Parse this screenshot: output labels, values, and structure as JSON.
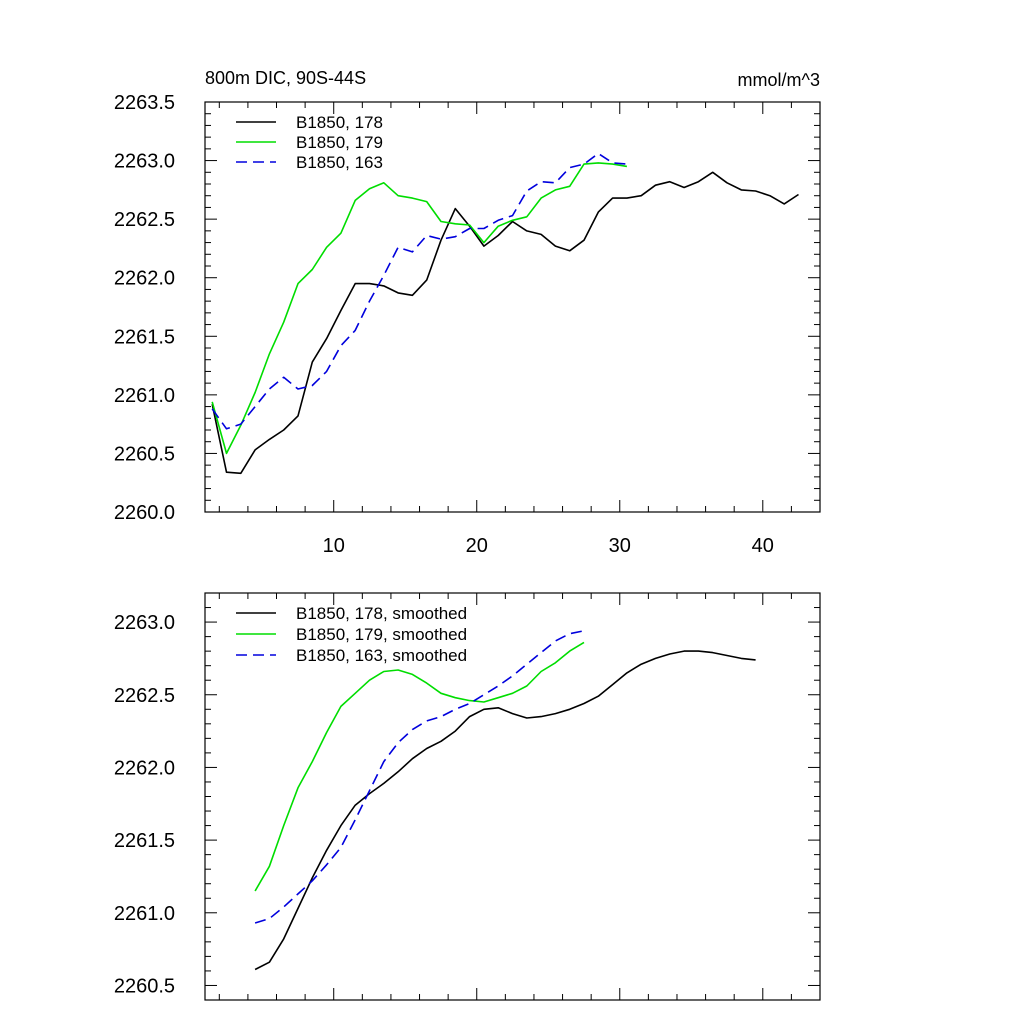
{
  "chart_data": [
    {
      "type": "line",
      "title_left": "800m DIC, 90S-44S",
      "title_right": "mmol/m^3",
      "xlim": [
        1,
        44
      ],
      "ylim": [
        2260.0,
        2263.5
      ],
      "x_ticks": [
        10,
        20,
        30,
        40
      ],
      "x_tick_labels": [
        "10",
        "20",
        "30",
        "40"
      ],
      "y_ticks": [
        2260.0,
        2260.5,
        2261.0,
        2261.5,
        2262.0,
        2262.5,
        2263.0,
        2263.5
      ],
      "y_tick_labels": [
        "2260.0",
        "2260.5",
        "2261.0",
        "2261.5",
        "2262.0",
        "2262.5",
        "2263.0",
        "2263.5"
      ],
      "legend_position": "top-left",
      "series": [
        {
          "name": "B1850, 178",
          "color": "#000000",
          "dash": "solid",
          "x": [
            1.5,
            2.5,
            3.5,
            4.5,
            5.5,
            6.5,
            7.5,
            8.5,
            9.5,
            10.5,
            11.5,
            12.5,
            13.5,
            14.5,
            15.5,
            16.5,
            17.5,
            18.5,
            19.5,
            20.5,
            21.5,
            22.5,
            23.5,
            24.5,
            25.5,
            26.5,
            27.5,
            28.5,
            29.5,
            30.5,
            31.5,
            32.5,
            33.5,
            34.5,
            35.5,
            36.5,
            37.5,
            38.5,
            39.5,
            40.5,
            41.5,
            42.5
          ],
          "y": [
            2260.92,
            2260.34,
            2260.33,
            2260.53,
            2260.62,
            2260.7,
            2260.82,
            2261.28,
            2261.48,
            2261.72,
            2261.95,
            2261.95,
            2261.93,
            2261.87,
            2261.85,
            2261.98,
            2262.32,
            2262.59,
            2262.44,
            2262.27,
            2262.36,
            2262.48,
            2262.4,
            2262.37,
            2262.27,
            2262.23,
            2262.32,
            2262.56,
            2262.68,
            2262.68,
            2262.7,
            2262.79,
            2262.82,
            2262.77,
            2262.82,
            2262.9,
            2262.81,
            2262.75,
            2262.74,
            2262.7,
            2262.63,
            2262.71
          ]
        },
        {
          "name": "B1850, 179",
          "color": "#00dd00",
          "dash": "solid",
          "x": [
            1.5,
            2.5,
            3.5,
            4.5,
            5.5,
            6.5,
            7.5,
            8.5,
            9.5,
            10.5,
            11.5,
            12.5,
            13.5,
            14.5,
            15.5,
            16.5,
            17.5,
            18.5,
            19.5,
            20.5,
            21.5,
            22.5,
            23.5,
            24.5,
            25.5,
            26.5,
            27.5,
            28.5,
            29.5,
            30.5
          ],
          "y": [
            2260.94,
            2260.5,
            2260.74,
            2261.02,
            2261.35,
            2261.62,
            2261.95,
            2262.07,
            2262.26,
            2262.38,
            2262.66,
            2262.76,
            2262.81,
            2262.7,
            2262.68,
            2262.65,
            2262.48,
            2262.46,
            2262.45,
            2262.3,
            2262.44,
            2262.49,
            2262.52,
            2262.68,
            2262.75,
            2262.78,
            2262.97,
            2262.98,
            2262.97,
            2262.95
          ]
        },
        {
          "name": "B1850, 163",
          "color": "#0000dd",
          "dash": "dashed",
          "x": [
            1.5,
            2.5,
            3.5,
            4.5,
            5.5,
            6.5,
            7.5,
            8.5,
            9.5,
            10.5,
            11.5,
            12.5,
            13.5,
            14.5,
            15.5,
            16.5,
            17.5,
            18.5,
            19.5,
            20.5,
            21.5,
            22.5,
            23.5,
            24.5,
            25.5,
            26.5,
            27.5,
            28.5,
            29.5,
            30.5
          ],
          "y": [
            2260.88,
            2260.71,
            2260.75,
            2260.9,
            2261.05,
            2261.15,
            2261.05,
            2261.08,
            2261.2,
            2261.42,
            2261.55,
            2261.8,
            2262.02,
            2262.26,
            2262.22,
            2262.36,
            2262.33,
            2262.35,
            2262.42,
            2262.42,
            2262.49,
            2262.53,
            2262.74,
            2262.82,
            2262.81,
            2262.94,
            2262.97,
            2263.06,
            2262.98,
            2262.97
          ]
        }
      ]
    },
    {
      "type": "line",
      "xlim": [
        1,
        44
      ],
      "ylim": [
        2260.4,
        2263.2
      ],
      "x_ticks": [
        10,
        20,
        30,
        40
      ],
      "y_ticks": [
        2260.5,
        2261.0,
        2261.5,
        2262.0,
        2262.5,
        2263.0
      ],
      "y_tick_labels": [
        "2260.5",
        "2261.0",
        "2261.5",
        "2262.0",
        "2262.5",
        "2263.0"
      ],
      "legend_position": "top-left",
      "series": [
        {
          "name": "B1850, 178, smoothed",
          "color": "#000000",
          "dash": "solid",
          "x": [
            4.5,
            5.5,
            6.5,
            7.5,
            8.5,
            9.5,
            10.5,
            11.5,
            12.5,
            13.5,
            14.5,
            15.5,
            16.5,
            17.5,
            18.5,
            19.5,
            20.5,
            21.5,
            22.5,
            23.5,
            24.5,
            25.5,
            26.5,
            27.5,
            28.5,
            29.5,
            30.5,
            31.5,
            32.5,
            33.5,
            34.5,
            35.5,
            36.5,
            37.5,
            38.5,
            39.5
          ],
          "y": [
            2260.61,
            2260.66,
            2260.82,
            2261.03,
            2261.24,
            2261.43,
            2261.6,
            2261.74,
            2261.82,
            2261.89,
            2261.97,
            2262.06,
            2262.13,
            2262.18,
            2262.25,
            2262.35,
            2262.4,
            2262.41,
            2262.37,
            2262.34,
            2262.35,
            2262.37,
            2262.4,
            2262.44,
            2262.49,
            2262.57,
            2262.65,
            2262.71,
            2262.75,
            2262.78,
            2262.8,
            2262.8,
            2262.79,
            2262.77,
            2262.75,
            2262.74
          ]
        },
        {
          "name": "B1850, 179, smoothed",
          "color": "#00dd00",
          "dash": "solid",
          "x": [
            4.5,
            5.5,
            6.5,
            7.5,
            8.5,
            9.5,
            10.5,
            11.5,
            12.5,
            13.5,
            14.5,
            15.5,
            16.5,
            17.5,
            18.5,
            19.5,
            20.5,
            21.5,
            22.5,
            23.5,
            24.5,
            25.5,
            26.5,
            27.5
          ],
          "y": [
            2261.15,
            2261.32,
            2261.6,
            2261.86,
            2262.04,
            2262.24,
            2262.42,
            2262.51,
            2262.6,
            2262.66,
            2262.67,
            2262.64,
            2262.58,
            2262.51,
            2262.48,
            2262.46,
            2262.45,
            2262.48,
            2262.51,
            2262.56,
            2262.66,
            2262.72,
            2262.8,
            2262.86
          ]
        },
        {
          "name": "B1850, 163, smoothed",
          "color": "#0000dd",
          "dash": "dashed",
          "x": [
            4.5,
            5.5,
            6.5,
            7.5,
            8.5,
            9.5,
            10.5,
            11.5,
            12.5,
            13.5,
            14.5,
            15.5,
            16.5,
            17.5,
            18.5,
            19.5,
            20.5,
            21.5,
            22.5,
            23.5,
            24.5,
            25.5,
            26.5,
            27.5
          ],
          "y": [
            2260.93,
            2260.96,
            2261.04,
            2261.13,
            2261.22,
            2261.33,
            2261.45,
            2261.64,
            2261.84,
            2262.04,
            2262.17,
            2262.26,
            2262.32,
            2262.35,
            2262.4,
            2262.44,
            2262.5,
            2262.56,
            2262.63,
            2262.71,
            2262.79,
            2262.87,
            2262.92,
            2262.94
          ]
        }
      ]
    }
  ]
}
